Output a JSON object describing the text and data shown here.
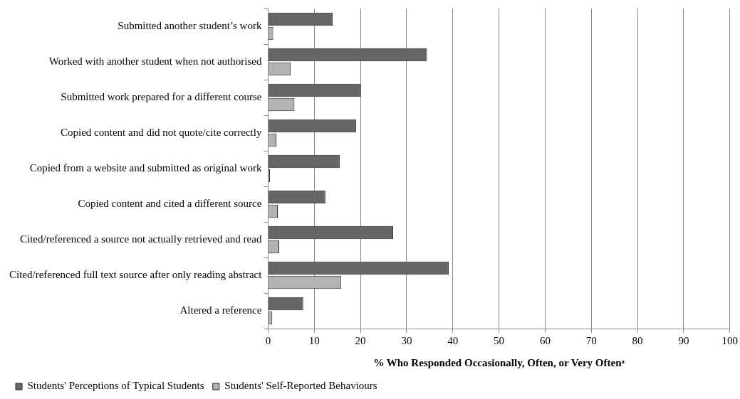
{
  "chart_data": {
    "type": "bar",
    "orientation": "horizontal",
    "xlabel": "% Who Responded Occasionally, Often, or Very Oftenᵃ",
    "categories": [
      "Submitted another student’s work",
      "Worked with another student when not authorised",
      "Submitted work prepared for a different course",
      "Copied content and did not quote/cite correctly",
      "Copied from a website and submitted as original work",
      "Copied content and cited a different source",
      "Cited/referenced a source not actually retrieved and read",
      "Cited/referenced full text source after only reading abstract",
      "Altered a reference"
    ],
    "series": [
      {
        "name": "Students' Perceptions of Typical Students",
        "color": "#666666",
        "values": [
          14.0,
          34.4,
          20.1,
          19.1,
          15.5,
          12.4,
          27.1,
          39.1,
          7.6
        ]
      },
      {
        "name": "Students' Self-Reported Behaviours",
        "color": "#b3b3b3",
        "values": [
          1.1,
          4.9,
          5.7,
          1.8,
          0.4,
          2.1,
          2.4,
          15.8,
          0.9
        ]
      }
    ],
    "xlim": [
      0,
      100
    ],
    "xticks": [
      0,
      10,
      20,
      30,
      40,
      50,
      60,
      70,
      80,
      90,
      100
    ],
    "grid": "x",
    "legend": "bottom"
  }
}
